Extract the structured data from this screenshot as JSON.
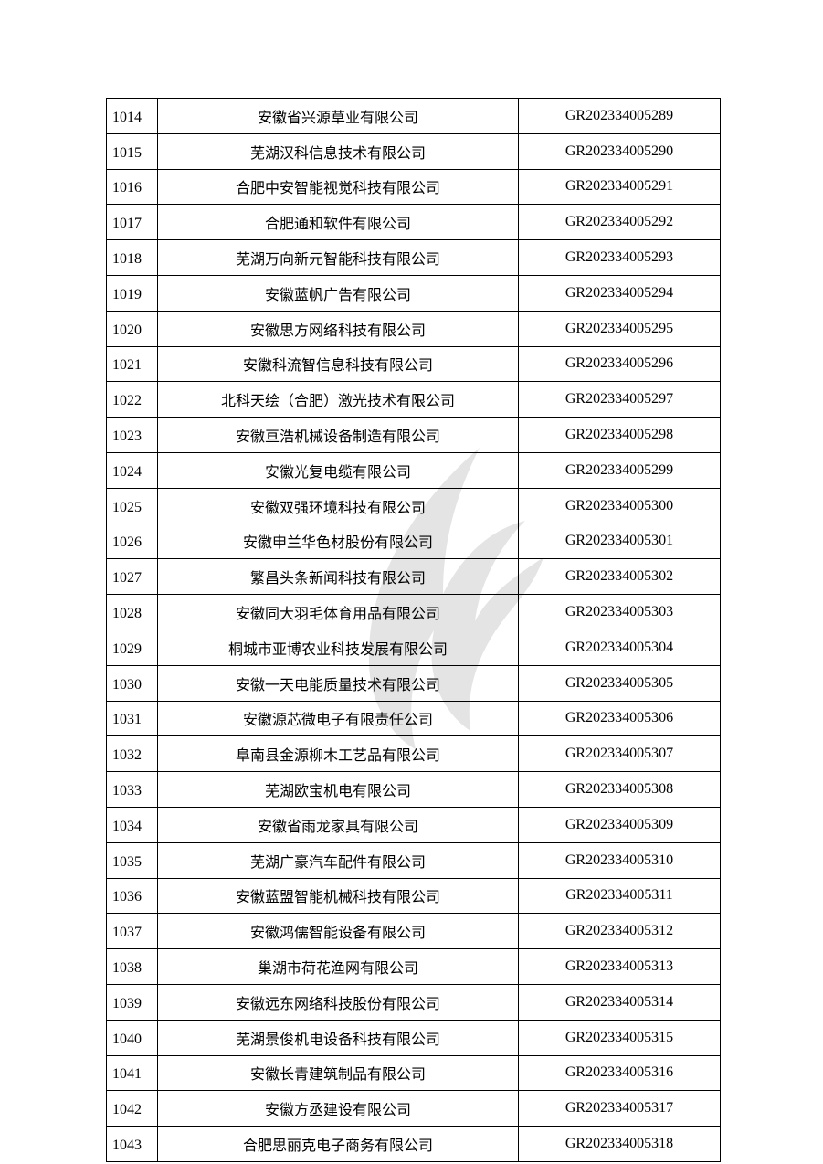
{
  "watermark_icon": "flame-logo-watermark",
  "rows": [
    {
      "no": "1014",
      "name": "安徽省兴源草业有限公司",
      "code": "GR202334005289"
    },
    {
      "no": "1015",
      "name": "芜湖汉科信息技术有限公司",
      "code": "GR202334005290"
    },
    {
      "no": "1016",
      "name": "合肥中安智能视觉科技有限公司",
      "code": "GR202334005291"
    },
    {
      "no": "1017",
      "name": "合肥通和软件有限公司",
      "code": "GR202334005292"
    },
    {
      "no": "1018",
      "name": "芜湖万向新元智能科技有限公司",
      "code": "GR202334005293"
    },
    {
      "no": "1019",
      "name": "安徽蓝帆广告有限公司",
      "code": "GR202334005294"
    },
    {
      "no": "1020",
      "name": "安徽思方网络科技有限公司",
      "code": "GR202334005295"
    },
    {
      "no": "1021",
      "name": "安徽科流智信息科技有限公司",
      "code": "GR202334005296"
    },
    {
      "no": "1022",
      "name": "北科天绘（合肥）激光技术有限公司",
      "code": "GR202334005297"
    },
    {
      "no": "1023",
      "name": "安徽亘浩机械设备制造有限公司",
      "code": "GR202334005298"
    },
    {
      "no": "1024",
      "name": "安徽光复电缆有限公司",
      "code": "GR202334005299"
    },
    {
      "no": "1025",
      "name": "安徽双强环境科技有限公司",
      "code": "GR202334005300"
    },
    {
      "no": "1026",
      "name": "安徽申兰华色材股份有限公司",
      "code": "GR202334005301"
    },
    {
      "no": "1027",
      "name": "繁昌头条新闻科技有限公司",
      "code": "GR202334005302"
    },
    {
      "no": "1028",
      "name": "安徽同大羽毛体育用品有限公司",
      "code": "GR202334005303"
    },
    {
      "no": "1029",
      "name": "桐城市亚博农业科技发展有限公司",
      "code": "GR202334005304"
    },
    {
      "no": "1030",
      "name": "安徽一天电能质量技术有限公司",
      "code": "GR202334005305"
    },
    {
      "no": "1031",
      "name": "安徽源芯微电子有限责任公司",
      "code": "GR202334005306"
    },
    {
      "no": "1032",
      "name": "阜南县金源柳木工艺品有限公司",
      "code": "GR202334005307"
    },
    {
      "no": "1033",
      "name": "芜湖欧宝机电有限公司",
      "code": "GR202334005308"
    },
    {
      "no": "1034",
      "name": "安徽省雨龙家具有限公司",
      "code": "GR202334005309"
    },
    {
      "no": "1035",
      "name": "芜湖广豪汽车配件有限公司",
      "code": "GR202334005310"
    },
    {
      "no": "1036",
      "name": "安徽蓝盟智能机械科技有限公司",
      "code": "GR202334005311"
    },
    {
      "no": "1037",
      "name": "安徽鸿儒智能设备有限公司",
      "code": "GR202334005312"
    },
    {
      "no": "1038",
      "name": "巢湖市荷花渔网有限公司",
      "code": "GR202334005313"
    },
    {
      "no": "1039",
      "name": "安徽远东网络科技股份有限公司",
      "code": "GR202334005314"
    },
    {
      "no": "1040",
      "name": "芜湖景俊机电设备科技有限公司",
      "code": "GR202334005315"
    },
    {
      "no": "1041",
      "name": "安徽长青建筑制品有限公司",
      "code": "GR202334005316"
    },
    {
      "no": "1042",
      "name": "安徽方丞建设有限公司",
      "code": "GR202334005317"
    },
    {
      "no": "1043",
      "name": "合肥思丽克电子商务有限公司",
      "code": "GR202334005318"
    }
  ]
}
